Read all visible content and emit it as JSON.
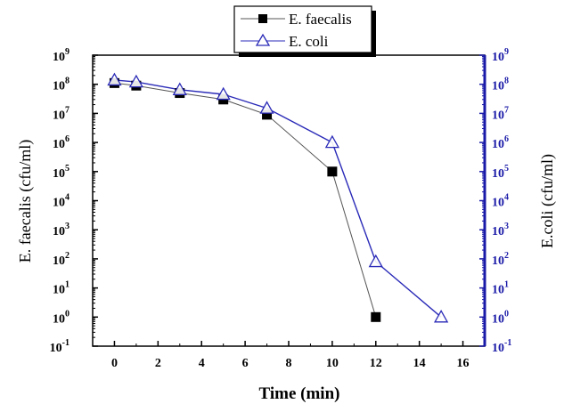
{
  "chart_data": {
    "type": "scatter",
    "x_axis": {
      "label": "Time (min)",
      "range": [
        -1,
        17
      ],
      "ticks": [
        0,
        2,
        4,
        6,
        8,
        10,
        12,
        14,
        16
      ],
      "tick_labels": [
        "0",
        "2",
        "4",
        "6",
        "8",
        "10",
        "12",
        "14",
        "16"
      ]
    },
    "y_axis_left": {
      "label": "E. faecalis (cfu/ml)",
      "scale": "log",
      "range": [
        0.1,
        1000000000
      ],
      "tick_exponents": [
        "-1",
        "0",
        "1",
        "2",
        "3",
        "4",
        "5",
        "6",
        "7",
        "8",
        "9"
      ]
    },
    "y_axis_right": {
      "label": "E.coli (cfu/ml)",
      "scale": "log",
      "range": [
        0.1,
        1000000000
      ],
      "tick_exponents": [
        "-1",
        "0",
        "1",
        "2",
        "3",
        "4",
        "5",
        "6",
        "7",
        "8",
        "9"
      ],
      "color": "#1a1aa8"
    },
    "tick_base": "10",
    "series": [
      {
        "name": "E. faecalis",
        "marker": "filled-square",
        "line_color": "#555555",
        "marker_color": "#000000",
        "x": [
          0,
          1,
          3,
          5,
          7,
          10,
          12
        ],
        "y": [
          110000000,
          90000000,
          50000000,
          30000000,
          9000000,
          100000,
          1
        ]
      },
      {
        "name": "E. coli",
        "marker": "open-triangle",
        "line_color": "#2a2ab8",
        "marker_color": "#2a2ab8",
        "x": [
          0,
          1,
          3,
          5,
          7,
          10,
          12,
          15
        ],
        "y": [
          140000000,
          120000000,
          65000000,
          45000000,
          15000000,
          1000000,
          80,
          1
        ]
      }
    ],
    "legend_position": "top-center",
    "grid": false
  }
}
